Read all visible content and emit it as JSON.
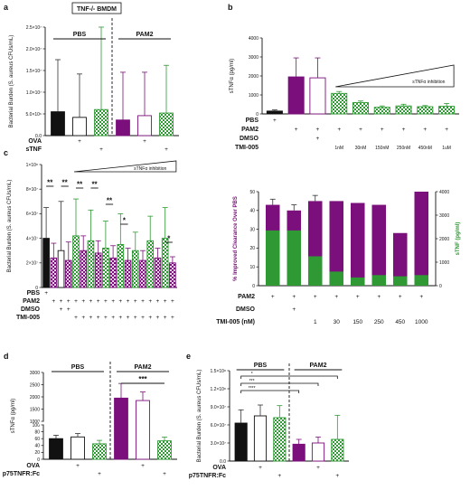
{
  "colors": {
    "black": "#111111",
    "white": "#ffffff",
    "purple": "#7b0f7b",
    "green": "#2f9a34",
    "green_light": "#7fc77f",
    "grey": "#9a9a9a"
  },
  "panel_letters": [
    "a",
    "b",
    "c",
    "d",
    "e"
  ],
  "chart_data": [
    {
      "panel": "a",
      "type": "bar",
      "header": "TNF-/- BMDM",
      "ylabel": "Bacterial Burden (S. aureus CFUs/mL)",
      "yticks": [
        "0.0",
        "5.0×10⁶",
        "1.0×10⁷",
        "1.5×10⁷",
        "2.0×10⁷",
        "2.5×10⁷"
      ],
      "ylim": [
        0,
        25000000
      ],
      "groups": [
        "PBS",
        "PAM2"
      ],
      "rows": [
        {
          "label": "OVA",
          "marks": [
            "",
            "+",
            "",
            "",
            "+",
            ""
          ]
        },
        {
          "label": "sTNF",
          "marks": [
            "",
            "",
            "+",
            "",
            "",
            "+"
          ]
        }
      ],
      "series": [
        {
          "values": [
            5500000,
            4200000,
            6000000,
            3600000,
            4600000,
            5200000
          ],
          "errors": [
            12000000,
            10000000,
            19000000,
            11000000,
            10000000,
            11000000
          ]
        }
      ],
      "styles": [
        "black",
        "white",
        "green",
        "purple",
        "white-purple",
        "green-check"
      ]
    },
    {
      "panel": "b",
      "type": "bar",
      "ylabel": "sTNFα (pg/ml)",
      "yticks": [
        "0",
        "1000",
        "2000",
        "3000",
        "4000"
      ],
      "ylim": [
        0,
        4000
      ],
      "wedge_label": "sTNFα inhibition",
      "rows": [
        {
          "label": "PBS",
          "marks": [
            "+",
            "",
            "",
            "",
            "",
            "",
            "",
            "",
            ""
          ]
        },
        {
          "label": "PAM2",
          "marks": [
            "",
            "+",
            "+",
            "+",
            "+",
            "+",
            "+",
            "+",
            "+"
          ]
        },
        {
          "label": "DMSO",
          "marks": [
            "",
            "",
            "+",
            "",
            "",
            "",
            "",
            "",
            ""
          ]
        },
        {
          "label": "TMI-005",
          "marks": [
            "",
            "",
            "",
            "1nM",
            "30nM",
            "150nM",
            "250nM",
            "450nM",
            "1uM"
          ]
        }
      ],
      "series": [
        {
          "values": [
            150,
            1950,
            1900,
            1080,
            600,
            350,
            420,
            380,
            400
          ],
          "errors": [
            60,
            1000,
            1050,
            100,
            80,
            70,
            90,
            60,
            150
          ]
        }
      ],
      "styles": [
        "black",
        "purple",
        "white-purple",
        "green-check",
        "green-check",
        "green-check",
        "green-check",
        "green-check",
        "green-check"
      ]
    },
    {
      "panel": "c-left",
      "type": "bar",
      "ylabel": "Bacterial Burden (S. aureus CFUs/mL)",
      "yticks": [
        "0",
        "2×10⁷",
        "4×10⁷",
        "6×10⁷",
        "8×10⁷",
        "1×10⁸"
      ],
      "ylim": [
        0,
        100000000
      ],
      "wedge_label": "sTNFα inhibition",
      "rows": [
        {
          "label": "PBS",
          "marks": [
            "+",
            "",
            "",
            "",
            "",
            "",
            "",
            "",
            "",
            "",
            "",
            "",
            "",
            "",
            "",
            "",
            "",
            ""
          ]
        },
        {
          "label": "PAM2",
          "marks": [
            "",
            "+",
            "+",
            "+",
            "+",
            "+",
            "+",
            "+",
            "+",
            "+",
            "+",
            "+",
            "+",
            "+",
            "+",
            "+",
            "+",
            "+"
          ]
        },
        {
          "label": "DMSO",
          "marks": [
            "",
            "",
            "+",
            "+",
            "",
            "",
            "",
            "",
            "",
            "",
            "",
            "",
            "",
            "",
            "",
            "",
            "",
            ""
          ]
        },
        {
          "label": "TMI-005",
          "marks": [
            "",
            "",
            "",
            "",
            "+",
            "+",
            "+",
            "+",
            "+",
            "+",
            "+",
            "+",
            "+",
            "+",
            "+",
            "+",
            "+",
            "+"
          ]
        }
      ],
      "series": [
        {
          "values": [
            40000000,
            24000000,
            30000000,
            22000000,
            42000000,
            30000000,
            38000000,
            28000000,
            32000000,
            24000000,
            35000000,
            22000000,
            30000000,
            22000000,
            38000000,
            24000000,
            40000000,
            20000000
          ],
          "errors": [
            25000000,
            12000000,
            40000000,
            15000000,
            30000000,
            12000000,
            25000000,
            10000000,
            22000000,
            10000000,
            25000000,
            10000000,
            15000000,
            8000000,
            20000000,
            8000000,
            25000000,
            5000000
          ]
        }
      ],
      "significance": [
        "**",
        "**",
        "**",
        "**",
        "**",
        "*",
        "*"
      ]
    },
    {
      "panel": "c-right",
      "type": "bar",
      "ylabel": "% Improved Clearance Over PBS",
      "ylabel_right": "sTNF (pg/ml)",
      "yticks": [
        "0",
        "10",
        "20",
        "30",
        "40",
        "50"
      ],
      "yticks_right": [
        "0",
        "1000",
        "2000",
        "3000",
        "4000"
      ],
      "ylim": [
        0,
        50
      ],
      "ylim_right": [
        0,
        4000
      ],
      "rows": [
        {
          "label": "PAM2",
          "marks": [
            "+",
            "+",
            "+",
            "+",
            "+",
            "+",
            "+",
            "+"
          ]
        },
        {
          "label": "DMSO",
          "marks": [
            "",
            "+",
            "",
            "",
            "",
            "",
            "",
            ""
          ]
        },
        {
          "label": "TMI-005 (nM)",
          "marks": [
            "",
            "",
            "1",
            "30",
            "150",
            "250",
            "450",
            "1000"
          ]
        }
      ],
      "series": [
        {
          "name": "% Improved Clearance Over PBS",
          "color": "purple",
          "values": [
            43,
            40,
            45,
            45,
            44,
            43,
            28,
            50
          ]
        },
        {
          "name": "sTNF (pg/ml)",
          "color": "green",
          "values": [
            2350,
            2350,
            1250,
            600,
            350,
            450,
            400,
            450
          ]
        }
      ]
    },
    {
      "panel": "d",
      "type": "bar",
      "ylabel": "sTNFα (pg/ml)",
      "yticks": [
        "0",
        "20",
        "40",
        "60",
        "80",
        "100",
        "1000",
        "1500",
        "2000",
        "2500",
        "3000"
      ],
      "ylim": [
        0,
        3000
      ],
      "groups": [
        "PBS",
        "PAM2"
      ],
      "rows": [
        {
          "label": "OVA",
          "marks": [
            "",
            "+",
            "",
            "",
            "+",
            ""
          ]
        },
        {
          "label": "p75TNFR:Fc",
          "marks": [
            "",
            "",
            "+",
            "",
            "",
            "+"
          ]
        }
      ],
      "series": [
        {
          "values": [
            60,
            65,
            45,
            1950,
            1850,
            200
          ],
          "errors": [
            10,
            10,
            10,
            600,
            350,
            150
          ]
        }
      ],
      "significance": [
        "***"
      ],
      "styles": [
        "black",
        "white",
        "green-check",
        "purple",
        "white-purple",
        "green-check"
      ]
    },
    {
      "panel": "e",
      "type": "bar",
      "ylabel": "Bacterial Burden (S. aureus CFUs/mL)",
      "yticks": [
        "0.0",
        "3.0×10⁷",
        "6.0×10⁷",
        "9.0×10⁷",
        "1.2×10⁸",
        "1.5×10⁸"
      ],
      "ylim": [
        0,
        150000000
      ],
      "groups": [
        "PBS",
        "PAM2"
      ],
      "rows": [
        {
          "label": "OVA",
          "marks": [
            "",
            "+",
            "",
            "",
            "+",
            ""
          ]
        },
        {
          "label": "p75TNFR:Fc",
          "marks": [
            "",
            "",
            "+",
            "",
            "",
            "+"
          ]
        }
      ],
      "series": [
        {
          "values": [
            63000000,
            75000000,
            72000000,
            28000000,
            30000000,
            36000000
          ],
          "errors": [
            22000000,
            18000000,
            20000000,
            8000000,
            10000000,
            40000000
          ]
        }
      ],
      "significance": [
        "*",
        "***",
        "****"
      ],
      "styles": [
        "black",
        "white",
        "green-check",
        "purple",
        "white-purple",
        "green-check"
      ]
    }
  ]
}
